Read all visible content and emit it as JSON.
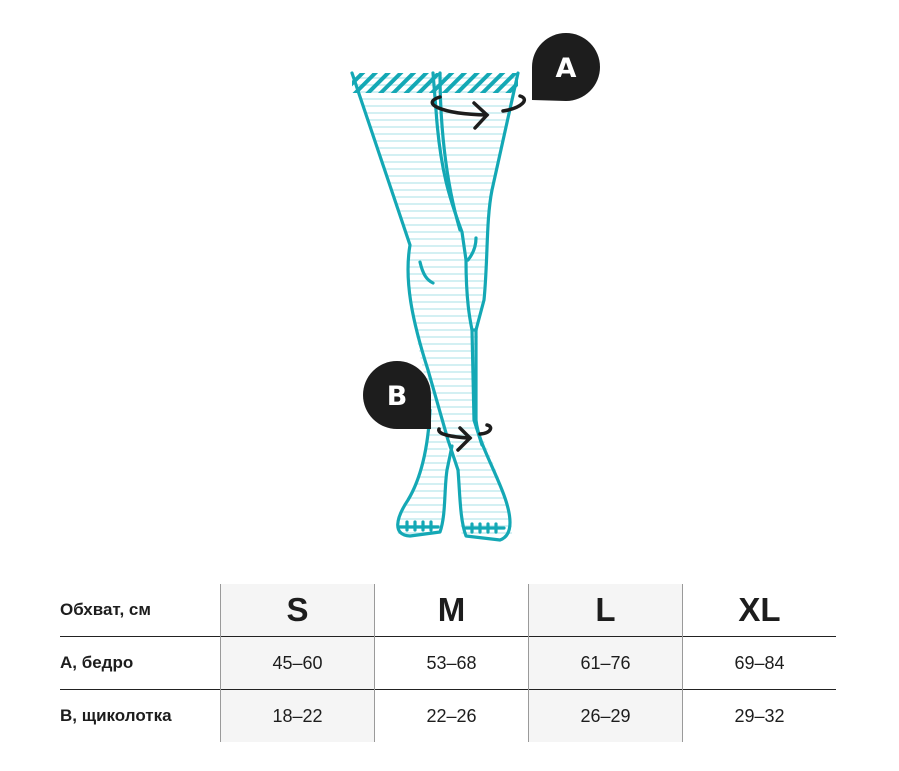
{
  "figure": {
    "badges": [
      {
        "label": "A"
      },
      {
        "label": "B"
      }
    ],
    "colors": {
      "leg_outline": "#14a8b5",
      "stripe": "#cdeef1",
      "badge": "#1d1d1d",
      "arrow": "#1d1d1d"
    }
  },
  "table": {
    "header_label": "Обхват, см",
    "sizes": [
      "S",
      "M",
      "L",
      "XL"
    ],
    "rows": [
      {
        "label": "A, бедро",
        "values": [
          "45–60",
          "53–68",
          "61–76",
          "69–84"
        ]
      },
      {
        "label": "B, щиколотка",
        "values": [
          "18–22",
          "22–26",
          "26–29",
          "29–32"
        ]
      }
    ]
  }
}
